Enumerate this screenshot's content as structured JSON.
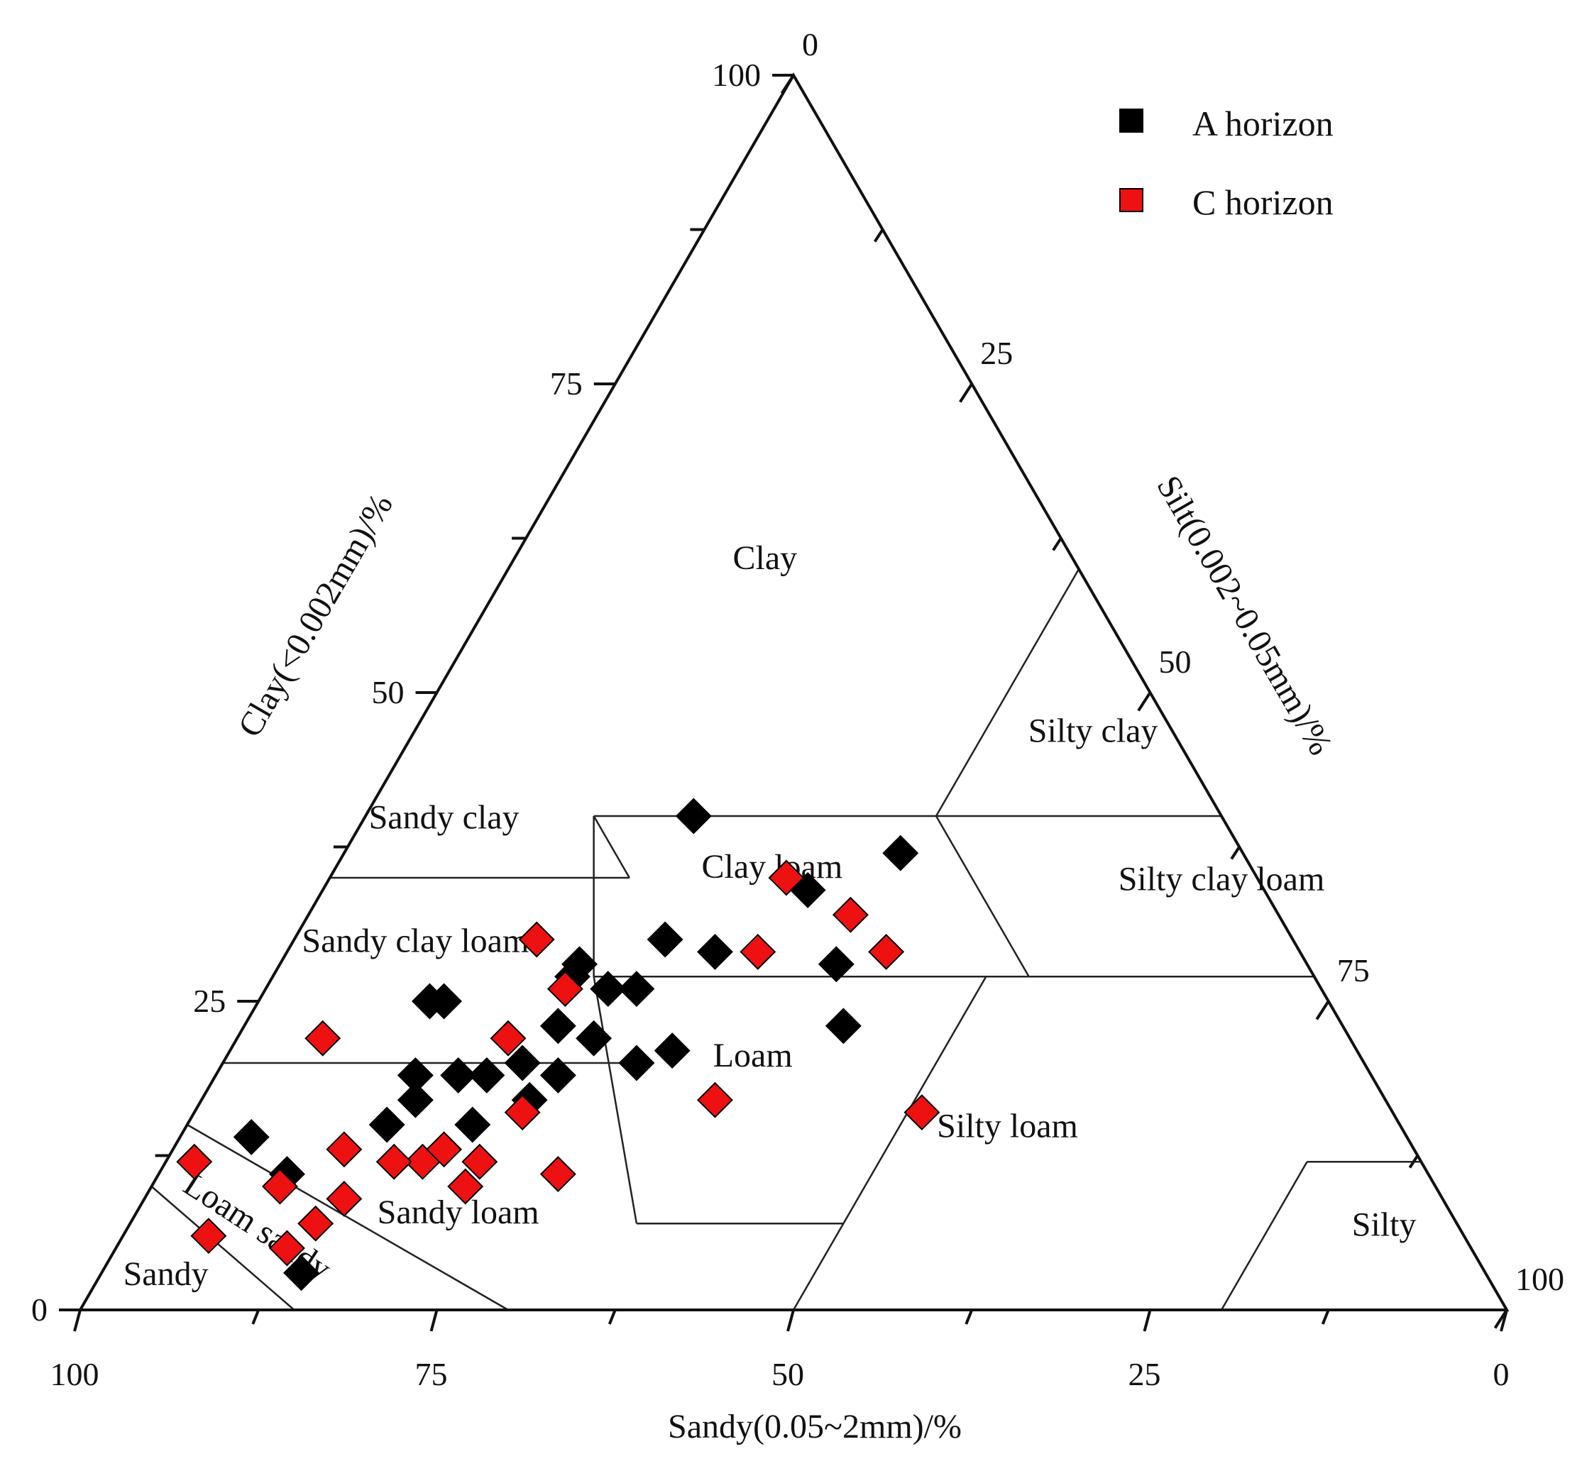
{
  "chart_data": {
    "type": "scatter",
    "subtype": "ternary",
    "axes": {
      "sand": {
        "label": "Sandy(0.05~2mm)/%",
        "ticks": [
          {
            "value": 100,
            "label": "100"
          },
          {
            "value": 75,
            "label": "75"
          },
          {
            "value": 50,
            "label": "50"
          },
          {
            "value": 25,
            "label": "25"
          },
          {
            "value": 0,
            "label": "0"
          }
        ],
        "range": [
          0,
          100
        ]
      },
      "clay": {
        "label": "Clay(<0.002mm)/%",
        "ticks": [
          {
            "value": 100,
            "label": "100"
          },
          {
            "value": 75,
            "label": "75"
          },
          {
            "value": 50,
            "label": "50"
          },
          {
            "value": 25,
            "label": "25"
          },
          {
            "value": 0,
            "label": "0"
          }
        ],
        "range": [
          0,
          100
        ]
      },
      "silt": {
        "label": "Silt(0.002~0.05mm)/%",
        "ticks": [
          {
            "value": 0,
            "label": "0"
          },
          {
            "value": 25,
            "label": "25"
          },
          {
            "value": 50,
            "label": "50"
          },
          {
            "value": 75,
            "label": "75"
          },
          {
            "value": 100,
            "label": "100"
          }
        ],
        "range": [
          0,
          100
        ]
      }
    },
    "legend": {
      "position": "top-right",
      "entries": [
        {
          "name": "A horizon",
          "color": "#000000"
        },
        {
          "name": "C horizon",
          "color": "#ee1111"
        }
      ]
    },
    "regions": [
      {
        "name": "Clay",
        "label": "Clay",
        "label_at": {
          "sand": 22,
          "clay": 60
        }
      },
      {
        "name": "Silty clay",
        "label": "Silty  clay",
        "label_at": {
          "sand": 6,
          "clay": 46
        }
      },
      {
        "name": "Sandy clay",
        "label": "Sandy  clay",
        "label_at": {
          "sand": 55,
          "clay": 39
        }
      },
      {
        "name": "Clay loam",
        "label": "Clay loam",
        "label_at": {
          "sand": 34,
          "clay": 35
        }
      },
      {
        "name": "Silty clay loam",
        "label": "Silty  clay loam",
        "label_at": {
          "sand": 3,
          "clay": 34
        }
      },
      {
        "name": "Sandy clay loam",
        "label": "Sandy clay loam",
        "label_at": {
          "sand": 62,
          "clay": 29
        }
      },
      {
        "name": "Loam",
        "label": "Loam",
        "label_at": {
          "sand": 43,
          "clay": 19.7
        }
      },
      {
        "name": "Silty loam",
        "label": "Silty loam",
        "label_at": {
          "sand": 28,
          "clay": 14
        }
      },
      {
        "name": "Sandy loam",
        "label": "Sandy loam",
        "label_at": {
          "sand": 70,
          "clay": 7
        }
      },
      {
        "name": "Silty",
        "label": "Silty",
        "label_at": {
          "sand": 5.6,
          "clay": 6
        }
      },
      {
        "name": "Loam sandy",
        "label": "Loam sandy",
        "label_at": {
          "sand": 85,
          "clay": 6
        }
      },
      {
        "name": "Sandy",
        "label": "Sandy",
        "label_at": {
          "sand": 93,
          "clay": 2
        }
      }
    ],
    "series": [
      {
        "name": "A horizon",
        "color": "#000000",
        "points": [
          {
            "sand": 37,
            "clay": 40
          },
          {
            "sand": 24,
            "clay": 37
          },
          {
            "sand": 32,
            "clay": 34
          },
          {
            "sand": 44,
            "clay": 30
          },
          {
            "sand": 41,
            "clay": 29
          },
          {
            "sand": 33,
            "clay": 28
          },
          {
            "sand": 35,
            "clay": 23
          },
          {
            "sand": 51,
            "clay": 28
          },
          {
            "sand": 52,
            "clay": 27
          },
          {
            "sand": 50,
            "clay": 26
          },
          {
            "sand": 48,
            "clay": 26
          },
          {
            "sand": 63,
            "clay": 25
          },
          {
            "sand": 62,
            "clay": 25
          },
          {
            "sand": 55,
            "clay": 23
          },
          {
            "sand": 53,
            "clay": 22
          },
          {
            "sand": 48,
            "clay": 21
          },
          {
            "sand": 59,
            "clay": 20
          },
          {
            "sand": 51,
            "clay": 20
          },
          {
            "sand": 64,
            "clay": 19
          },
          {
            "sand": 62,
            "clay": 19
          },
          {
            "sand": 67,
            "clay": 19
          },
          {
            "sand": 57,
            "clay": 19
          },
          {
            "sand": 60,
            "clay": 17
          },
          {
            "sand": 68,
            "clay": 17
          },
          {
            "sand": 65,
            "clay": 15
          },
          {
            "sand": 71,
            "clay": 15
          },
          {
            "sand": 81,
            "clay": 14
          },
          {
            "sand": 80,
            "clay": 11
          },
          {
            "sand": 83,
            "clay": 3
          }
        ]
      },
      {
        "name": "C horizon",
        "color": "#ee1111",
        "points": [
          {
            "sand": 33,
            "clay": 35
          },
          {
            "sand": 30,
            "clay": 32
          },
          {
            "sand": 29,
            "clay": 29
          },
          {
            "sand": 38,
            "clay": 29
          },
          {
            "sand": 53,
            "clay": 30
          },
          {
            "sand": 53,
            "clay": 26
          },
          {
            "sand": 59,
            "clay": 22
          },
          {
            "sand": 72,
            "clay": 22
          },
          {
            "sand": 61,
            "clay": 16
          },
          {
            "sand": 47,
            "clay": 17
          },
          {
            "sand": 33,
            "clay": 16
          },
          {
            "sand": 86,
            "clay": 12
          },
          {
            "sand": 75,
            "clay": 13
          },
          {
            "sand": 70,
            "clay": 12
          },
          {
            "sand": 68,
            "clay": 13
          },
          {
            "sand": 66,
            "clay": 12
          },
          {
            "sand": 72,
            "clay": 12
          },
          {
            "sand": 61,
            "clay": 11
          },
          {
            "sand": 68,
            "clay": 10
          },
          {
            "sand": 81,
            "clay": 10
          },
          {
            "sand": 77,
            "clay": 9
          },
          {
            "sand": 80,
            "clay": 7
          },
          {
            "sand": 88,
            "clay": 6
          },
          {
            "sand": 83,
            "clay": 5
          }
        ]
      }
    ]
  }
}
